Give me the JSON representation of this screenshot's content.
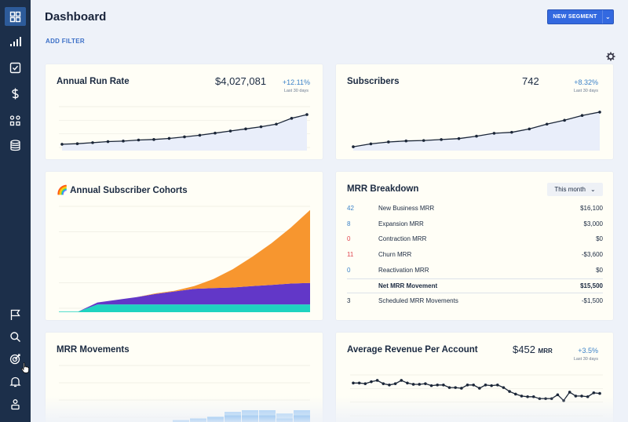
{
  "header": {
    "title": "Dashboard",
    "add_filter": "ADD FILTER",
    "new_segment": "NEW SEGMENT"
  },
  "sidebar": {
    "items": [
      {
        "icon": "dashboard-grid-icon",
        "active": true
      },
      {
        "icon": "bar-chart-icon"
      },
      {
        "icon": "checkbox-icon"
      },
      {
        "icon": "dollar-icon"
      },
      {
        "icon": "shapes-icon"
      },
      {
        "icon": "database-icon"
      },
      {
        "icon": "flag-icon"
      },
      {
        "icon": "search-icon"
      },
      {
        "icon": "target-icon"
      },
      {
        "icon": "bell-icon"
      },
      {
        "icon": "user-icon"
      }
    ]
  },
  "cards": {
    "arr": {
      "title": "Annual Run Rate",
      "value": "$4,027,081",
      "change": "+12.11%",
      "period": "Last 30 days"
    },
    "subscribers": {
      "title": "Subscribers",
      "value": "742",
      "change": "+8.32%",
      "period": "Last 30 days"
    },
    "cohorts": {
      "title": "Annual Subscriber Cohorts",
      "emoji": "🌈"
    },
    "breakdown": {
      "title": "MRR Breakdown",
      "range": "This month",
      "rows": [
        {
          "count": "42",
          "name": "New Business MRR",
          "amount": "$16,100",
          "count_color": "#3b82c8"
        },
        {
          "count": "8",
          "name": "Expansion MRR",
          "amount": "$3,000",
          "count_color": "#3b82c8"
        },
        {
          "count": "0",
          "name": "Contraction MRR",
          "amount": "$0",
          "count_color": "#e0454f"
        },
        {
          "count": "11",
          "name": "Churn MRR",
          "amount": "-$3,600",
          "count_color": "#e0454f"
        },
        {
          "count": "0",
          "name": "Reactivation MRR",
          "amount": "$0",
          "count_color": "#3b82c8"
        },
        {
          "count": "",
          "name": "Net MRR Movement",
          "amount": "$15,500",
          "bold": true
        },
        {
          "count": "3",
          "name": "Scheduled MRR Movements",
          "amount": "-$1,500",
          "count_color": "#1b2a41"
        }
      ]
    },
    "movements": {
      "title": "MRR Movements"
    },
    "arpa": {
      "title": "Average Revenue Per Account",
      "value": "$452",
      "unit": "MRR",
      "change": "+3.5%",
      "period": "Last 30 days"
    }
  },
  "colors": {
    "accent": "#3369e0",
    "sidebar": "#1c2f4a",
    "cohort_orange": "#f7962f",
    "cohort_purple": "#6237c8",
    "cohort_teal": "#1fd3c0"
  },
  "chart_data": [
    {
      "type": "area",
      "title": "Annual Run Rate",
      "values": [
        12,
        13,
        15,
        17,
        18,
        20,
        21,
        23,
        26,
        29,
        33,
        37,
        41,
        45,
        50,
        61,
        68
      ]
    },
    {
      "type": "area",
      "title": "Subscribers",
      "values": [
        8,
        14,
        18,
        20,
        21,
        23,
        25,
        30,
        36,
        38,
        45,
        55,
        63,
        73,
        80
      ]
    },
    {
      "type": "area",
      "title": "Annual Subscriber Cohorts",
      "x": [
        0,
        1,
        2,
        3,
        4,
        5,
        6,
        7,
        8,
        9,
        10,
        11,
        12,
        13
      ],
      "series": [
        {
          "values": [
            1,
            1,
            12,
            12,
            12,
            12,
            12,
            12,
            12,
            12,
            12,
            12,
            12,
            12
          ]
        },
        {
          "values": [
            0,
            0,
            3,
            7,
            11,
            16,
            20,
            24,
            25,
            26,
            28,
            30,
            32,
            33
          ]
        },
        {
          "values": [
            0,
            0,
            0,
            0,
            0,
            1,
            1,
            4,
            14,
            28,
            45,
            64,
            86,
            112
          ]
        }
      ]
    },
    {
      "type": "bar",
      "title": "MRR Movements",
      "values": [
        2,
        4,
        5,
        6,
        7,
        7,
        7,
        5,
        7,
        7,
        9,
        16,
        36,
        8
      ],
      "secondary": [
        0,
        0,
        0,
        0,
        2,
        3,
        3,
        3,
        3,
        3,
        4,
        4,
        8,
        2
      ]
    },
    {
      "type": "line",
      "title": "Average Revenue Per Account",
      "values": [
        55,
        55,
        54,
        57,
        59,
        54,
        52,
        54,
        59,
        55,
        53,
        53,
        54,
        51,
        52,
        52,
        48,
        48,
        47,
        52,
        52,
        47,
        52,
        51,
        52,
        48,
        42,
        38,
        35,
        34,
        34,
        31,
        31,
        31,
        37,
        28,
        41,
        35,
        35,
        34,
        40,
        39
      ]
    }
  ]
}
